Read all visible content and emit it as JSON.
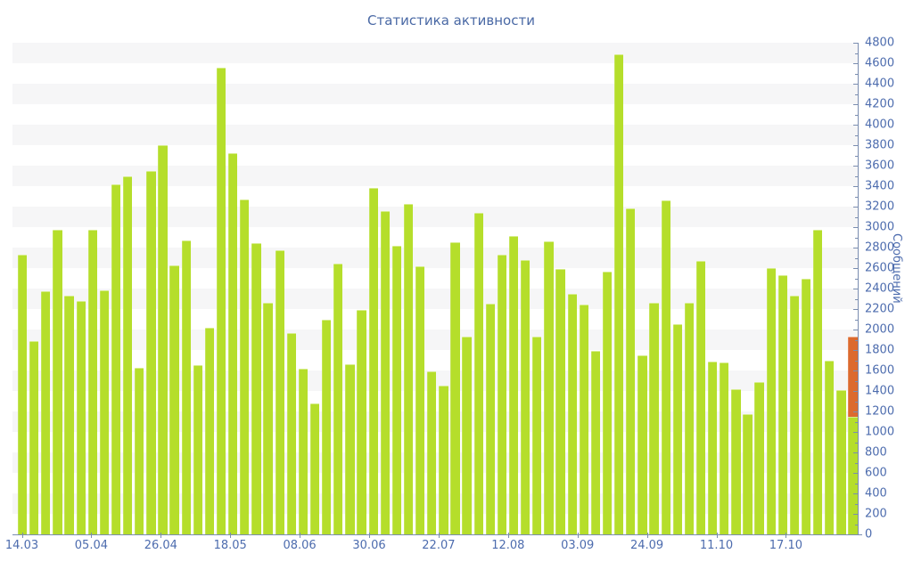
{
  "title": "Статистика активности",
  "colors": {
    "bar": "#b5de2b",
    "highlight": "#dc6a2e",
    "axis_line": "#7a8db0",
    "tick_label": "#4d6cae",
    "title": "#4a69a5",
    "stripe": "#f6f6f7",
    "background": "#ffffff"
  },
  "chart_data": {
    "type": "bar",
    "title": "Статистика активности",
    "xlabel": "",
    "ylabel": "Сообщений",
    "ylim": [
      0,
      4800
    ],
    "ytick_major_step": 200,
    "ytick_minor_step": 100,
    "grid": "alternating horizontal stripes, 200-unit bands",
    "legend_position": "none",
    "y_axis_side": "right",
    "x_tick_labels": [
      "14.03",
      "05.04",
      "26.04",
      "18.05",
      "08.06",
      "30.06",
      "22.07",
      "12.08",
      "03.09",
      "24.09",
      "11.10",
      "17.10"
    ],
    "x_ticks_every_n_bars": 6,
    "values": [
      2730,
      1890,
      2375,
      2970,
      2330,
      2280,
      2970,
      2380,
      3420,
      3500,
      1625,
      3550,
      3800,
      2630,
      2870,
      1650,
      2015,
      4560,
      3720,
      3270,
      2845,
      2260,
      2775,
      1965,
      1620,
      1280,
      2100,
      2640,
      1665,
      2190,
      3385,
      3160,
      2815,
      3230,
      2615,
      1590,
      1450,
      2855,
      1930,
      3135,
      2250,
      2730,
      2915,
      2675,
      1930,
      2865,
      2590,
      2345,
      2240,
      1790,
      2565,
      4690,
      3185,
      1745,
      2260,
      3260,
      2050,
      2260,
      2670,
      1690,
      1680,
      1420,
      1170,
      1490,
      2600,
      2530,
      2330,
      2500,
      2975,
      1700,
      1410,
      1930
    ],
    "highlight_segment": {
      "bar_index": 71,
      "from_value": 1150,
      "to_value": 1930,
      "note": "last bar is green up to 1150 with orange segment 1150-1930 on top"
    }
  }
}
